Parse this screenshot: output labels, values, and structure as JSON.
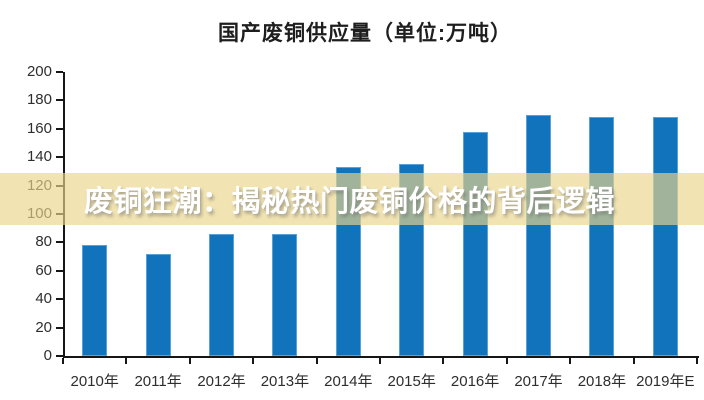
{
  "overlay": {
    "text": "废铜狂潮：揭秘热门废铜价格的背后逻辑",
    "band_color": "rgba(236, 214, 138, 0.66)",
    "text_color": "#ffffff"
  },
  "chart_data": {
    "type": "bar",
    "title": "国产废铜供应量（单位:万吨）",
    "categories": [
      "2010年",
      "2011年",
      "2012年",
      "2013年",
      "2014年",
      "2015年",
      "2016年",
      "2017年",
      "2018年",
      "2019年E"
    ],
    "values": [
      78,
      72,
      86,
      86,
      133,
      135,
      158,
      170,
      168,
      168
    ],
    "xlabel": "",
    "ylabel": "",
    "ylim": [
      0,
      200
    ],
    "yticks": [
      0,
      20,
      40,
      60,
      80,
      100,
      120,
      140,
      160,
      180,
      200
    ],
    "grid": false,
    "legend": false,
    "bar_color": "#1273BD",
    "axis_color": "#161616",
    "label_color": "#2e2e2e"
  }
}
